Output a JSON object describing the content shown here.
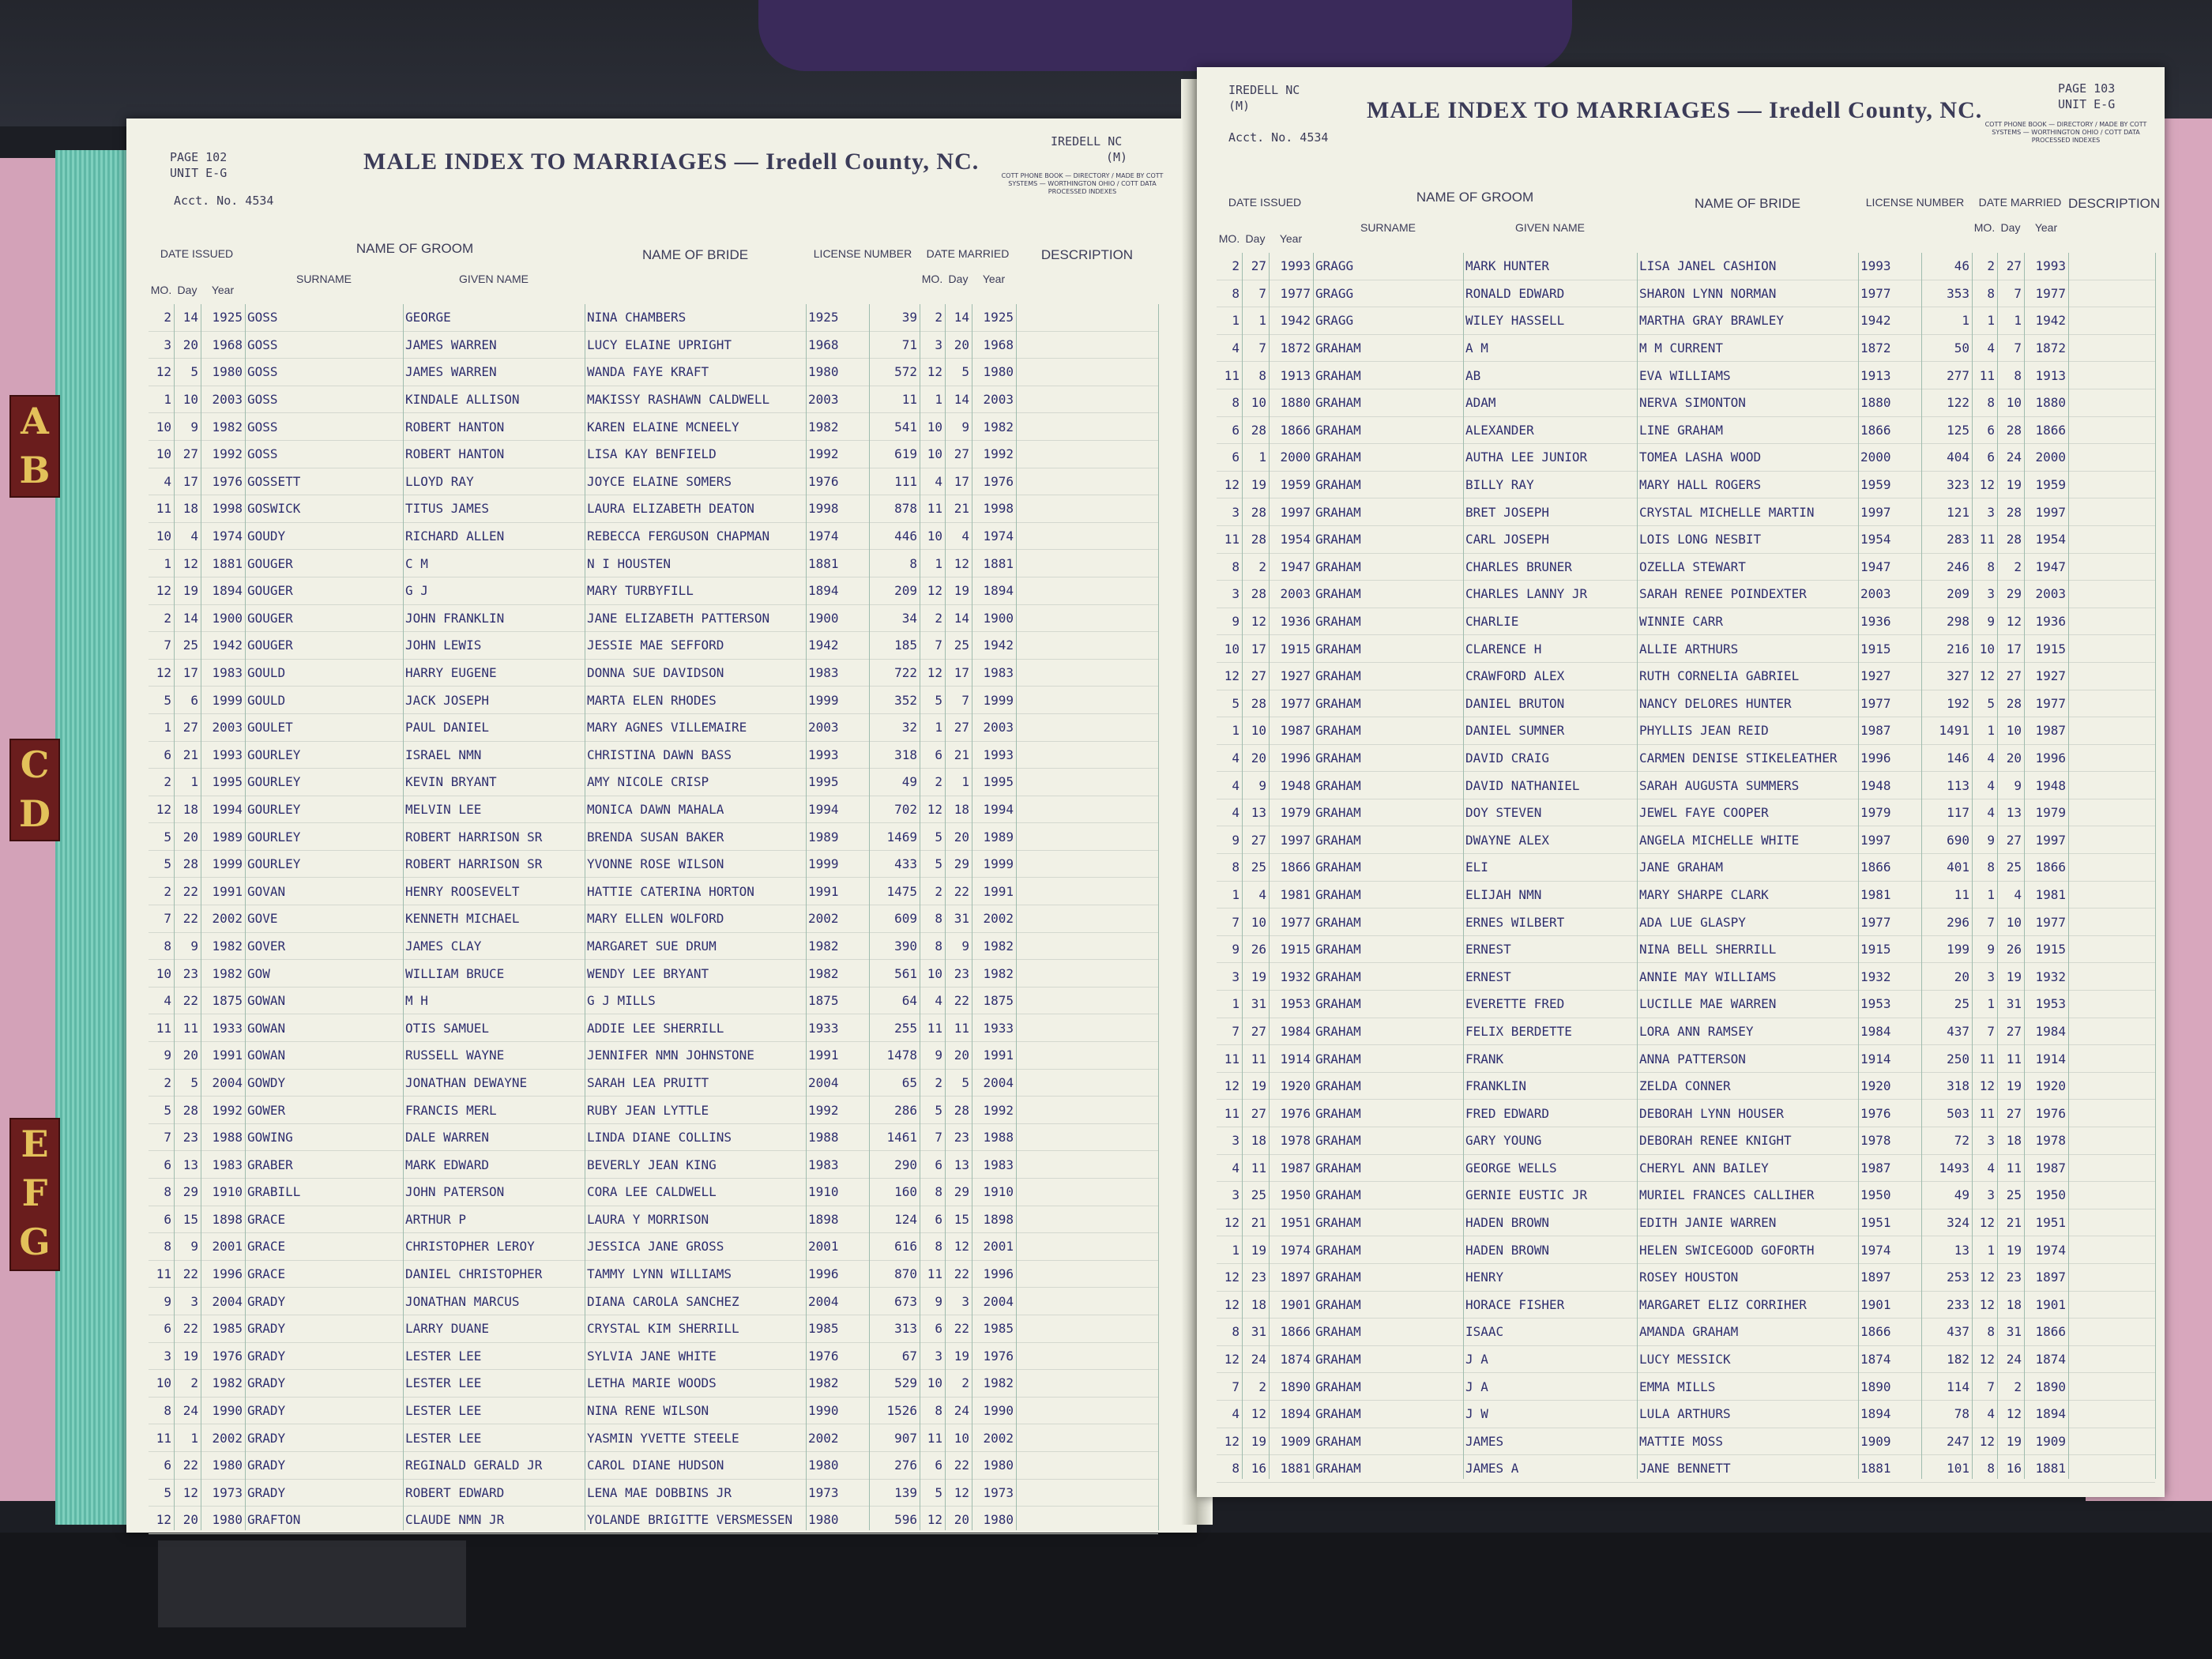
{
  "tabs": [
    "AB",
    "CD",
    "EFG"
  ],
  "colors": {
    "paper": "#f1f1e6",
    "ink": "#2e2e6e",
    "tab": "#6a1d1d",
    "tab_text": "#e3c15a",
    "page_edge": "#6fc4b2"
  },
  "headers": {
    "name_of_groom": "NAME OF GROOM",
    "surname": "SURNAME",
    "given_name": "GIVEN NAME",
    "name_of_bride": "NAME OF BRIDE",
    "license_number": "LICENSE NUMBER",
    "date_issued": "DATE ISSUED",
    "date_married": "DATE MARRIED",
    "mo": "MO.",
    "day": "Day",
    "year": "Year",
    "description": "DESCRIPTION"
  },
  "left_page": {
    "page": "PAGE 102",
    "unit": "UNIT E-G",
    "acct": "Acct. No. 4534",
    "title": "MALE INDEX TO MARRIAGES — Iredell County, NC.",
    "county_code": "IREDELL NC",
    "code": "(M)",
    "imprint": "COTT PHONE BOOK — DIRECTORY / MADE BY COTT SYSTEMS — WORTHINGTON OHIO / COTT DATA PROCESSED INDEXES",
    "rows": [
      [
        "2",
        "14",
        "1925",
        "GOSS",
        "GEORGE",
        "NINA CHAMBERS",
        "1925",
        "39",
        "2",
        "14",
        "1925"
      ],
      [
        "3",
        "20",
        "1968",
        "GOSS",
        "JAMES WARREN",
        "LUCY ELAINE UPRIGHT",
        "1968",
        "71",
        "3",
        "20",
        "1968"
      ],
      [
        "12",
        "5",
        "1980",
        "GOSS",
        "JAMES WARREN",
        "WANDA FAYE KRAFT",
        "1980",
        "572",
        "12",
        "5",
        "1980"
      ],
      [
        "1",
        "10",
        "2003",
        "GOSS",
        "KINDALE ALLISON",
        "MAKISSY RASHAWN CALDWELL",
        "2003",
        "11",
        "1",
        "14",
        "2003"
      ],
      [
        "10",
        "9",
        "1982",
        "GOSS",
        "ROBERT HANTON",
        "KAREN ELAINE MCNEELY",
        "1982",
        "541",
        "10",
        "9",
        "1982"
      ],
      [
        "10",
        "27",
        "1992",
        "GOSS",
        "ROBERT HANTON",
        "LISA KAY BENFIELD",
        "1992",
        "619",
        "10",
        "27",
        "1992"
      ],
      [
        "4",
        "17",
        "1976",
        "GOSSETT",
        "LLOYD RAY",
        "JOYCE ELAINE SOMERS",
        "1976",
        "111",
        "4",
        "17",
        "1976"
      ],
      [
        "11",
        "18",
        "1998",
        "GOSWICK",
        "TITUS JAMES",
        "LAURA ELIZABETH DEATON",
        "1998",
        "878",
        "11",
        "21",
        "1998"
      ],
      [
        "10",
        "4",
        "1974",
        "GOUDY",
        "RICHARD ALLEN",
        "REBECCA FERGUSON CHAPMAN",
        "1974",
        "446",
        "10",
        "4",
        "1974"
      ],
      [
        "1",
        "12",
        "1881",
        "GOUGER",
        "C M",
        "N I HOUSTEN",
        "1881",
        "8",
        "1",
        "12",
        "1881"
      ],
      [
        "12",
        "19",
        "1894",
        "GOUGER",
        "G J",
        "MARY TURBYFILL",
        "1894",
        "209",
        "12",
        "19",
        "1894"
      ],
      [
        "2",
        "14",
        "1900",
        "GOUGER",
        "JOHN FRANKLIN",
        "JANE ELIZABETH PATTERSON",
        "1900",
        "34",
        "2",
        "14",
        "1900"
      ],
      [
        "7",
        "25",
        "1942",
        "GOUGER",
        "JOHN LEWIS",
        "JESSIE MAE SEFFORD",
        "1942",
        "185",
        "7",
        "25",
        "1942"
      ],
      [
        "12",
        "17",
        "1983",
        "GOULD",
        "HARRY EUGENE",
        "DONNA SUE DAVIDSON",
        "1983",
        "722",
        "12",
        "17",
        "1983"
      ],
      [
        "5",
        "6",
        "1999",
        "GOULD",
        "JACK JOSEPH",
        "MARTA ELEN RHODES",
        "1999",
        "352",
        "5",
        "7",
        "1999"
      ],
      [
        "1",
        "27",
        "2003",
        "GOULET",
        "PAUL DANIEL",
        "MARY AGNES VILLEMAIRE",
        "2003",
        "32",
        "1",
        "27",
        "2003"
      ],
      [
        "6",
        "21",
        "1993",
        "GOURLEY",
        "ISRAEL NMN",
        "CHRISTINA DAWN BASS",
        "1993",
        "318",
        "6",
        "21",
        "1993"
      ],
      [
        "2",
        "1",
        "1995",
        "GOURLEY",
        "KEVIN BRYANT",
        "AMY NICOLE CRISP",
        "1995",
        "49",
        "2",
        "1",
        "1995"
      ],
      [
        "12",
        "18",
        "1994",
        "GOURLEY",
        "MELVIN LEE",
        "MONICA DAWN MAHALA",
        "1994",
        "702",
        "12",
        "18",
        "1994"
      ],
      [
        "5",
        "20",
        "1989",
        "GOURLEY",
        "ROBERT HARRISON SR",
        "BRENDA SUSAN BAKER",
        "1989",
        "1469",
        "5",
        "20",
        "1989"
      ],
      [
        "5",
        "28",
        "1999",
        "GOURLEY",
        "ROBERT HARRISON SR",
        "YVONNE ROSE WILSON",
        "1999",
        "433",
        "5",
        "29",
        "1999"
      ],
      [
        "2",
        "22",
        "1991",
        "GOVAN",
        "HENRY ROOSEVELT",
        "HATTIE CATERINA HORTON",
        "1991",
        "1475",
        "2",
        "22",
        "1991"
      ],
      [
        "7",
        "22",
        "2002",
        "GOVE",
        "KENNETH MICHAEL",
        "MARY ELLEN WOLFORD",
        "2002",
        "609",
        "8",
        "31",
        "2002"
      ],
      [
        "8",
        "9",
        "1982",
        "GOVER",
        "JAMES CLAY",
        "MARGARET SUE DRUM",
        "1982",
        "390",
        "8",
        "9",
        "1982"
      ],
      [
        "10",
        "23",
        "1982",
        "GOW",
        "WILLIAM BRUCE",
        "WENDY LEE BRYANT",
        "1982",
        "561",
        "10",
        "23",
        "1982"
      ],
      [
        "4",
        "22",
        "1875",
        "GOWAN",
        "M H",
        "G J MILLS",
        "1875",
        "64",
        "4",
        "22",
        "1875"
      ],
      [
        "11",
        "11",
        "1933",
        "GOWAN",
        "OTIS SAMUEL",
        "ADDIE LEE SHERRILL",
        "1933",
        "255",
        "11",
        "11",
        "1933"
      ],
      [
        "9",
        "20",
        "1991",
        "GOWAN",
        "RUSSELL WAYNE",
        "JENNIFER NMN JOHNSTONE",
        "1991",
        "1478",
        "9",
        "20",
        "1991"
      ],
      [
        "2",
        "5",
        "2004",
        "GOWDY",
        "JONATHAN DEWAYNE",
        "SARAH LEA PRUITT",
        "2004",
        "65",
        "2",
        "5",
        "2004"
      ],
      [
        "5",
        "28",
        "1992",
        "GOWER",
        "FRANCIS MERL",
        "RUBY JEAN LYTTLE",
        "1992",
        "286",
        "5",
        "28",
        "1992"
      ],
      [
        "7",
        "23",
        "1988",
        "GOWING",
        "DALE WARREN",
        "LINDA DIANE COLLINS",
        "1988",
        "1461",
        "7",
        "23",
        "1988"
      ],
      [
        "6",
        "13",
        "1983",
        "GRABER",
        "MARK EDWARD",
        "BEVERLY JEAN KING",
        "1983",
        "290",
        "6",
        "13",
        "1983"
      ],
      [
        "8",
        "29",
        "1910",
        "GRABILL",
        "JOHN PATERSON",
        "CORA LEE CALDWELL",
        "1910",
        "160",
        "8",
        "29",
        "1910"
      ],
      [
        "6",
        "15",
        "1898",
        "GRACE",
        "ARTHUR P",
        "LAURA Y MORRISON",
        "1898",
        "124",
        "6",
        "15",
        "1898"
      ],
      [
        "8",
        "9",
        "2001",
        "GRACE",
        "CHRISTOPHER LEROY",
        "JESSICA JANE GROSS",
        "2001",
        "616",
        "8",
        "12",
        "2001"
      ],
      [
        "11",
        "22",
        "1996",
        "GRACE",
        "DANIEL CHRISTOPHER",
        "TAMMY LYNN WILLIAMS",
        "1996",
        "870",
        "11",
        "22",
        "1996"
      ],
      [
        "9",
        "3",
        "2004",
        "GRADY",
        "JONATHAN MARCUS",
        "DIANA CAROLA SANCHEZ",
        "2004",
        "673",
        "9",
        "3",
        "2004"
      ],
      [
        "6",
        "22",
        "1985",
        "GRADY",
        "LARRY DUANE",
        "CRYSTAL KIM SHERRILL",
        "1985",
        "313",
        "6",
        "22",
        "1985"
      ],
      [
        "3",
        "19",
        "1976",
        "GRADY",
        "LESTER LEE",
        "SYLVIA JANE WHITE",
        "1976",
        "67",
        "3",
        "19",
        "1976"
      ],
      [
        "10",
        "2",
        "1982",
        "GRADY",
        "LESTER LEE",
        "LETHA MARIE WOODS",
        "1982",
        "529",
        "10",
        "2",
        "1982"
      ],
      [
        "8",
        "24",
        "1990",
        "GRADY",
        "LESTER LEE",
        "NINA RENE WILSON",
        "1990",
        "1526",
        "8",
        "24",
        "1990"
      ],
      [
        "11",
        "1",
        "2002",
        "GRADY",
        "LESTER LEE",
        "YASMIN YVETTE STEELE",
        "2002",
        "907",
        "11",
        "10",
        "2002"
      ],
      [
        "6",
        "22",
        "1980",
        "GRADY",
        "REGINALD GERALD JR",
        "CAROL DIANE HUDSON",
        "1980",
        "276",
        "6",
        "22",
        "1980"
      ],
      [
        "5",
        "12",
        "1973",
        "GRADY",
        "ROBERT EDWARD",
        "LENA MAE DOBBINS JR",
        "1973",
        "139",
        "5",
        "12",
        "1973"
      ],
      [
        "12",
        "20",
        "1980",
        "GRAFTON",
        "CLAUDE NMN JR",
        "YOLANDE BRIGITTE VERSMESSEN",
        "1980",
        "596",
        "12",
        "20",
        "1980"
      ]
    ]
  },
  "right_page": {
    "page": "PAGE 103",
    "unit": "UNIT E-G",
    "acct": "Acct. No. 4534",
    "title": "MALE INDEX TO MARRIAGES — Iredell County, NC.",
    "county_code": "IREDELL NC",
    "code": "(M)",
    "imprint": "COTT PHONE BOOK — DIRECTORY / MADE BY COTT SYSTEMS — WORTHINGTON OHIO / COTT DATA PROCESSED INDEXES",
    "rows": [
      [
        "2",
        "27",
        "1993",
        "GRAGG",
        "MARK HUNTER",
        "LISA JANEL CASHION",
        "1993",
        "46",
        "2",
        "27",
        "1993"
      ],
      [
        "8",
        "7",
        "1977",
        "GRAGG",
        "RONALD EDWARD",
        "SHARON LYNN NORMAN",
        "1977",
        "353",
        "8",
        "7",
        "1977"
      ],
      [
        "1",
        "1",
        "1942",
        "GRAGG",
        "WILEY HASSELL",
        "MARTHA GRAY BRAWLEY",
        "1942",
        "1",
        "1",
        "1",
        "1942"
      ],
      [
        "4",
        "7",
        "1872",
        "GRAHAM",
        "A M",
        "M M CURRENT",
        "1872",
        "50",
        "4",
        "7",
        "1872"
      ],
      [
        "11",
        "8",
        "1913",
        "GRAHAM",
        "AB",
        "EVA WILLIAMS",
        "1913",
        "277",
        "11",
        "8",
        "1913"
      ],
      [
        "8",
        "10",
        "1880",
        "GRAHAM",
        "ADAM",
        "NERVA SIMONTON",
        "1880",
        "122",
        "8",
        "10",
        "1880"
      ],
      [
        "6",
        "28",
        "1866",
        "GRAHAM",
        "ALEXANDER",
        "LINE GRAHAM",
        "1866",
        "125",
        "6",
        "28",
        "1866"
      ],
      [
        "6",
        "1",
        "2000",
        "GRAHAM",
        "AUTHA LEE JUNIOR",
        "TOMEA LASHA WOOD",
        "2000",
        "404",
        "6",
        "24",
        "2000"
      ],
      [
        "12",
        "19",
        "1959",
        "GRAHAM",
        "BILLY RAY",
        "MARY HALL ROGERS",
        "1959",
        "323",
        "12",
        "19",
        "1959"
      ],
      [
        "3",
        "28",
        "1997",
        "GRAHAM",
        "BRET JOSEPH",
        "CRYSTAL MICHELLE MARTIN",
        "1997",
        "121",
        "3",
        "28",
        "1997"
      ],
      [
        "11",
        "28",
        "1954",
        "GRAHAM",
        "CARL JOSEPH",
        "LOIS LONG NESBIT",
        "1954",
        "283",
        "11",
        "28",
        "1954"
      ],
      [
        "8",
        "2",
        "1947",
        "GRAHAM",
        "CHARLES BRUNER",
        "OZELLA STEWART",
        "1947",
        "246",
        "8",
        "2",
        "1947"
      ],
      [
        "3",
        "28",
        "2003",
        "GRAHAM",
        "CHARLES LANNY JR",
        "SARAH RENEE POINDEXTER",
        "2003",
        "209",
        "3",
        "29",
        "2003"
      ],
      [
        "9",
        "12",
        "1936",
        "GRAHAM",
        "CHARLIE",
        "WINNIE CARR",
        "1936",
        "298",
        "9",
        "12",
        "1936"
      ],
      [
        "10",
        "17",
        "1915",
        "GRAHAM",
        "CLARENCE H",
        "ALLIE ARTHURS",
        "1915",
        "216",
        "10",
        "17",
        "1915"
      ],
      [
        "12",
        "27",
        "1927",
        "GRAHAM",
        "CRAWFORD ALEX",
        "RUTH CORNELIA GABRIEL",
        "1927",
        "327",
        "12",
        "27",
        "1927"
      ],
      [
        "5",
        "28",
        "1977",
        "GRAHAM",
        "DANIEL BRUTON",
        "NANCY DELORES HUNTER",
        "1977",
        "192",
        "5",
        "28",
        "1977"
      ],
      [
        "1",
        "10",
        "1987",
        "GRAHAM",
        "DANIEL SUMNER",
        "PHYLLIS JEAN REID",
        "1987",
        "1491",
        "1",
        "10",
        "1987"
      ],
      [
        "4",
        "20",
        "1996",
        "GRAHAM",
        "DAVID CRAIG",
        "CARMEN DENISE STIKELEATHER",
        "1996",
        "146",
        "4",
        "20",
        "1996"
      ],
      [
        "4",
        "9",
        "1948",
        "GRAHAM",
        "DAVID NATHANIEL",
        "SARAH AUGUSTA SUMMERS",
        "1948",
        "113",
        "4",
        "9",
        "1948"
      ],
      [
        "4",
        "13",
        "1979",
        "GRAHAM",
        "DOY STEVEN",
        "JEWEL FAYE COOPER",
        "1979",
        "117",
        "4",
        "13",
        "1979"
      ],
      [
        "9",
        "27",
        "1997",
        "GRAHAM",
        "DWAYNE ALEX",
        "ANGELA MICHELLE WHITE",
        "1997",
        "690",
        "9",
        "27",
        "1997"
      ],
      [
        "8",
        "25",
        "1866",
        "GRAHAM",
        "ELI",
        "JANE GRAHAM",
        "1866",
        "401",
        "8",
        "25",
        "1866"
      ],
      [
        "1",
        "4",
        "1981",
        "GRAHAM",
        "ELIJAH NMN",
        "MARY SHARPE CLARK",
        "1981",
        "11",
        "1",
        "4",
        "1981"
      ],
      [
        "7",
        "10",
        "1977",
        "GRAHAM",
        "ERNES WILBERT",
        "ADA LUE GLASPY",
        "1977",
        "296",
        "7",
        "10",
        "1977"
      ],
      [
        "9",
        "26",
        "1915",
        "GRAHAM",
        "ERNEST",
        "NINA BELL SHERRILL",
        "1915",
        "199",
        "9",
        "26",
        "1915"
      ],
      [
        "3",
        "19",
        "1932",
        "GRAHAM",
        "ERNEST",
        "ANNIE MAY WILLIAMS",
        "1932",
        "20",
        "3",
        "19",
        "1932"
      ],
      [
        "1",
        "31",
        "1953",
        "GRAHAM",
        "EVERETTE FRED",
        "LUCILLE MAE WARREN",
        "1953",
        "25",
        "1",
        "31",
        "1953"
      ],
      [
        "7",
        "27",
        "1984",
        "GRAHAM",
        "FELIX BERDETTE",
        "LORA ANN RAMSEY",
        "1984",
        "437",
        "7",
        "27",
        "1984"
      ],
      [
        "11",
        "11",
        "1914",
        "GRAHAM",
        "FRANK",
        "ANNA PATTERSON",
        "1914",
        "250",
        "11",
        "11",
        "1914"
      ],
      [
        "12",
        "19",
        "1920",
        "GRAHAM",
        "FRANKLIN",
        "ZELDA CONNER",
        "1920",
        "318",
        "12",
        "19",
        "1920"
      ],
      [
        "11",
        "27",
        "1976",
        "GRAHAM",
        "FRED EDWARD",
        "DEBORAH LYNN HOUSER",
        "1976",
        "503",
        "11",
        "27",
        "1976"
      ],
      [
        "3",
        "18",
        "1978",
        "GRAHAM",
        "GARY YOUNG",
        "DEBORAH RENEE KNIGHT",
        "1978",
        "72",
        "3",
        "18",
        "1978"
      ],
      [
        "4",
        "11",
        "1987",
        "GRAHAM",
        "GEORGE WELLS",
        "CHERYL ANN BAILEY",
        "1987",
        "1493",
        "4",
        "11",
        "1987"
      ],
      [
        "3",
        "25",
        "1950",
        "GRAHAM",
        "GERNIE EUSTIC JR",
        "MURIEL FRANCES CALLIHER",
        "1950",
        "49",
        "3",
        "25",
        "1950"
      ],
      [
        "12",
        "21",
        "1951",
        "GRAHAM",
        "HADEN BROWN",
        "EDITH JANIE WARREN",
        "1951",
        "324",
        "12",
        "21",
        "1951"
      ],
      [
        "1",
        "19",
        "1974",
        "GRAHAM",
        "HADEN BROWN",
        "HELEN SWICEGOOD GOFORTH",
        "1974",
        "13",
        "1",
        "19",
        "1974"
      ],
      [
        "12",
        "23",
        "1897",
        "GRAHAM",
        "HENRY",
        "ROSEY HOUSTON",
        "1897",
        "253",
        "12",
        "23",
        "1897"
      ],
      [
        "12",
        "18",
        "1901",
        "GRAHAM",
        "HORACE FISHER",
        "MARGARET ELIZ CORRIHER",
        "1901",
        "233",
        "12",
        "18",
        "1901"
      ],
      [
        "8",
        "31",
        "1866",
        "GRAHAM",
        "ISAAC",
        "AMANDA GRAHAM",
        "1866",
        "437",
        "8",
        "31",
        "1866"
      ],
      [
        "12",
        "24",
        "1874",
        "GRAHAM",
        "J A",
        "LUCY MESSICK",
        "1874",
        "182",
        "12",
        "24",
        "1874"
      ],
      [
        "7",
        "2",
        "1890",
        "GRAHAM",
        "J A",
        "EMMA MILLS",
        "1890",
        "114",
        "7",
        "2",
        "1890"
      ],
      [
        "4",
        "12",
        "1894",
        "GRAHAM",
        "J W",
        "LULA ARTHURS",
        "1894",
        "78",
        "4",
        "12",
        "1894"
      ],
      [
        "12",
        "19",
        "1909",
        "GRAHAM",
        "JAMES",
        "MATTIE MOSS",
        "1909",
        "247",
        "12",
        "19",
        "1909"
      ],
      [
        "8",
        "16",
        "1881",
        "GRAHAM",
        "JAMES A",
        "JANE BENNETT",
        "1881",
        "101",
        "8",
        "16",
        "1881"
      ]
    ]
  }
}
